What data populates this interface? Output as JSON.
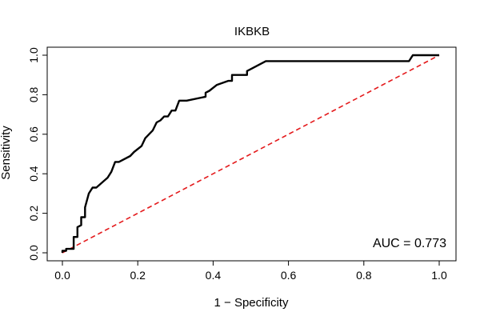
{
  "chart_data": {
    "type": "line",
    "title": "IKBKB",
    "xlabel": "1 − Specificity",
    "ylabel": "Sensitivity",
    "xlim": [
      0,
      1
    ],
    "ylim": [
      0,
      1
    ],
    "x_ticks": [
      "0.0",
      "0.2",
      "0.4",
      "0.6",
      "0.8",
      "1.0"
    ],
    "y_ticks": [
      "0.0",
      "0.2",
      "0.4",
      "0.6",
      "0.8",
      "1.0"
    ],
    "grid": false,
    "annotation": "AUC = 0.773",
    "series": [
      {
        "color": "#000000",
        "style": "solid",
        "x": [
          0.0,
          0.0,
          0.01,
          0.01,
          0.03,
          0.03,
          0.04,
          0.04,
          0.05,
          0.05,
          0.06,
          0.06,
          0.07,
          0.08,
          0.09,
          0.12,
          0.13,
          0.14,
          0.15,
          0.18,
          0.19,
          0.21,
          0.22,
          0.24,
          0.25,
          0.26,
          0.27,
          0.28,
          0.29,
          0.3,
          0.31,
          0.33,
          0.38,
          0.38,
          0.39,
          0.41,
          0.41,
          0.44,
          0.45,
          0.45,
          0.49,
          0.49,
          0.54,
          0.55,
          0.92,
          0.93,
          1.0
        ],
        "y": [
          0.0,
          0.01,
          0.01,
          0.02,
          0.02,
          0.08,
          0.08,
          0.13,
          0.14,
          0.18,
          0.18,
          0.23,
          0.3,
          0.33,
          0.33,
          0.38,
          0.41,
          0.46,
          0.46,
          0.49,
          0.51,
          0.54,
          0.58,
          0.62,
          0.66,
          0.67,
          0.69,
          0.69,
          0.72,
          0.72,
          0.77,
          0.77,
          0.79,
          0.81,
          0.82,
          0.85,
          0.85,
          0.87,
          0.87,
          0.9,
          0.9,
          0.92,
          0.97,
          0.97,
          0.97,
          1.0,
          1.0
        ]
      },
      {
        "color": "#e41a1c",
        "style": "dashed",
        "x": [
          0,
          1
        ],
        "y": [
          0,
          1
        ]
      }
    ]
  }
}
